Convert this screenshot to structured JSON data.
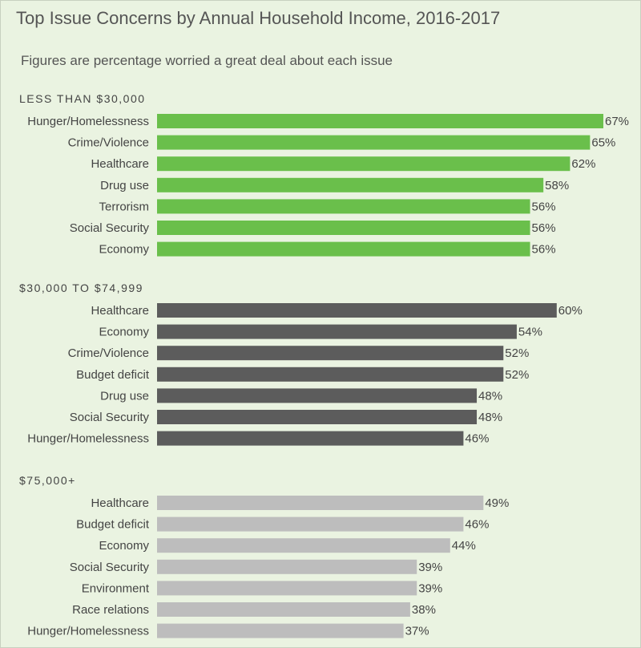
{
  "title": "Top Issue Concerns by Annual Household Income, 2016-2017",
  "subtitle": "Figures are percentage worried a great deal about each issue",
  "chart_data": [
    {
      "type": "bar",
      "orientation": "horizontal",
      "title": "LESS THAN $30,000",
      "color": "#6abf4b",
      "categories": [
        "Hunger/Homelessness",
        "Crime/Violence",
        "Healthcare",
        "Drug use",
        "Terrorism",
        "Social Security",
        "Economy"
      ],
      "values": [
        67,
        65,
        62,
        58,
        56,
        56,
        56
      ],
      "value_suffix": "%"
    },
    {
      "type": "bar",
      "orientation": "horizontal",
      "title": "$30,000 TO $74,999",
      "color": "#5c5c5c",
      "categories": [
        "Healthcare",
        "Economy",
        "Crime/Violence",
        "Budget deficit",
        "Drug use",
        "Social Security",
        "Hunger/Homelessness"
      ],
      "values": [
        60,
        54,
        52,
        52,
        48,
        48,
        46
      ],
      "value_suffix": "%"
    },
    {
      "type": "bar",
      "orientation": "horizontal",
      "title": "$75,000+",
      "color": "#bdbdbd",
      "categories": [
        "Healthcare",
        "Budget deficit",
        "Economy",
        "Social Security",
        "Environment",
        "Race relations",
        "Hunger/Homelessness"
      ],
      "values": [
        49,
        46,
        44,
        39,
        39,
        38,
        37
      ],
      "value_suffix": "%"
    }
  ]
}
